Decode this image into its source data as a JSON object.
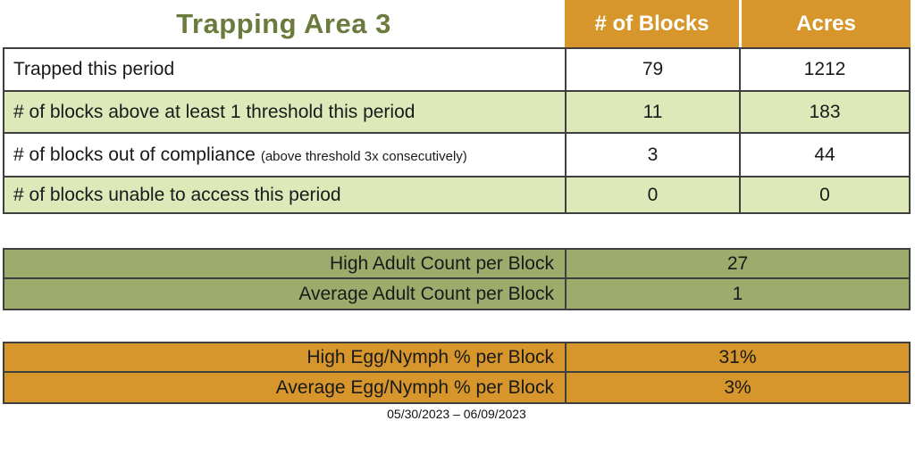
{
  "colors": {
    "title_green": "#6b7b3e",
    "header_orange": "#d6962b",
    "row_light_green": "#dee9ba",
    "adult_sage_green": "#9dac6c",
    "border_dark": "#3f3f3f",
    "header_text_white": "#ffffff"
  },
  "table1": {
    "title": "Trapping Area 3",
    "columns": {
      "blocks": "# of Blocks",
      "acres": "Acres"
    },
    "rows": [
      {
        "label": "Trapped this period",
        "blocks": "79",
        "acres": "1212"
      },
      {
        "label": "# of blocks above at least 1 threshold this period",
        "blocks": "11",
        "acres": "183"
      },
      {
        "label": "# of blocks out of compliance",
        "note": "(above threshold 3x consecutively)",
        "blocks": "3",
        "acres": "44"
      },
      {
        "label": "# of blocks unable to access this period",
        "blocks": "0",
        "acres": "0"
      }
    ]
  },
  "adult_table": {
    "rows": [
      {
        "label": "High Adult Count per Block",
        "value": "27"
      },
      {
        "label": "Average Adult Count per Block",
        "value": "1"
      }
    ]
  },
  "egg_table": {
    "rows": [
      {
        "label": "High Egg/Nymph % per Block",
        "value": "31%"
      },
      {
        "label": "Average Egg/Nymph % per Block",
        "value": "3%"
      }
    ]
  },
  "footer": {
    "date_range": "05/30/2023 – 06/09/2023"
  }
}
